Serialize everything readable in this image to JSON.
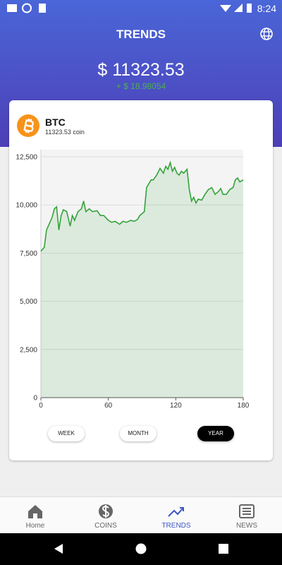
{
  "status_bar": {
    "time": "8:24"
  },
  "header": {
    "title": "TRENDS",
    "price": "$ 11323.53",
    "change": "+ $ 18.98054"
  },
  "coin": {
    "symbol": "BTC",
    "amount": "11323.53 coin"
  },
  "chart_data": {
    "type": "line",
    "x": [
      0,
      3,
      5,
      8,
      10,
      12,
      14,
      16,
      18,
      20,
      23,
      26,
      28,
      30,
      33,
      36,
      38,
      40,
      43,
      46,
      50,
      53,
      56,
      60,
      63,
      66,
      70,
      73,
      76,
      80,
      83,
      86,
      88,
      90,
      92,
      94,
      96,
      98,
      100,
      103,
      106,
      109,
      111,
      113,
      115,
      117,
      119,
      121,
      123,
      125,
      127,
      130,
      132,
      134,
      136,
      138,
      140,
      143,
      146,
      149,
      152,
      155,
      158,
      160,
      162,
      165,
      168,
      171,
      173,
      175,
      177,
      180
    ],
    "series": [
      {
        "color": "#34a33a",
        "values": [
          7600,
          7800,
          8700,
          9100,
          9350,
          9800,
          9900,
          8700,
          9450,
          9750,
          9650,
          8900,
          9450,
          9200,
          9650,
          9800,
          10200,
          9650,
          9800,
          9650,
          9700,
          9450,
          9450,
          9200,
          9100,
          9150,
          9000,
          9150,
          9100,
          9200,
          9150,
          9250,
          9450,
          9550,
          9650,
          10900,
          11100,
          11300,
          11300,
          11550,
          11900,
          11650,
          12000,
          11850,
          12200,
          11750,
          11950,
          11650,
          11550,
          11750,
          11650,
          11850,
          10800,
          10200,
          10400,
          10100,
          10300,
          10250,
          10550,
          10800,
          10900,
          10550,
          10700,
          10850,
          10550,
          10550,
          10800,
          10900,
          11300,
          11400,
          11200,
          11300
        ]
      }
    ],
    "xlim": [
      0,
      180
    ],
    "xticks": [
      0,
      60,
      120,
      180
    ],
    "ylim": [
      0,
      12500
    ],
    "yticks": [
      0,
      {
        "value": 2500,
        "label": "2,500"
      },
      {
        "value": 5000,
        "label": "5,000"
      },
      {
        "value": 7500,
        "label": "7,500"
      },
      {
        "value": 10000,
        "label": "10,000"
      },
      {
        "value": 12500,
        "label": "12,500"
      }
    ],
    "grid": true,
    "fill_area": true
  },
  "range_buttons": {
    "items": [
      "WEEK",
      "MONTH",
      "YEAR"
    ],
    "selected": 2
  },
  "nav": {
    "items": [
      "Home",
      "COINS",
      "TRENDS",
      "NEWS"
    ],
    "selected": 2
  }
}
